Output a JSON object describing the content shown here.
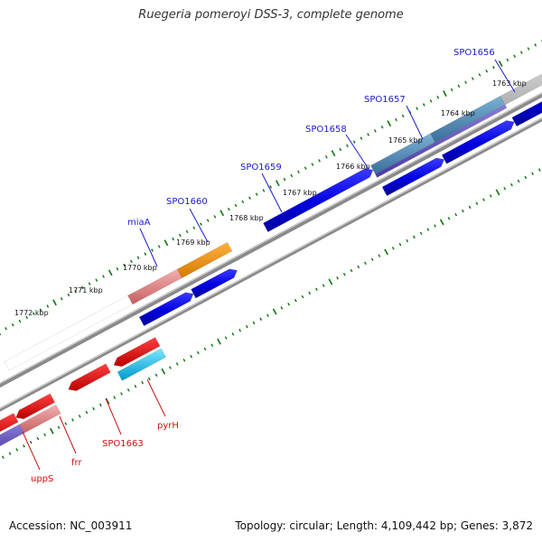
{
  "title": "Ruegeria pomeroyi DSS-3, complete genome",
  "footer": {
    "accession": "Accession: NC_003911",
    "stats": "Topology: circular; Length: 4,109,442 bp; Genes: 3,872"
  },
  "colors": {
    "backbone": "#8a8a8a",
    "tick": "#1a7a1a",
    "forward_label": "#1a1acc",
    "reverse_label": "#cc1111"
  },
  "kbp_labels": [
    "1763 kbp",
    "1764 kbp",
    "1765 kbp",
    "1766 kbp",
    "1767 kbp",
    "1768 kbp",
    "1769 kbp",
    "1770 kbp",
    "1771 kbp",
    "1772 kbp"
  ],
  "forward_gene_labels": [
    "SPO1656",
    "SPO1657",
    "SPO1658",
    "SPO1659",
    "SPO1660",
    "miaA"
  ],
  "reverse_gene_labels": [
    "pyrH",
    "SPO1663",
    "frr",
    "uppS"
  ]
}
